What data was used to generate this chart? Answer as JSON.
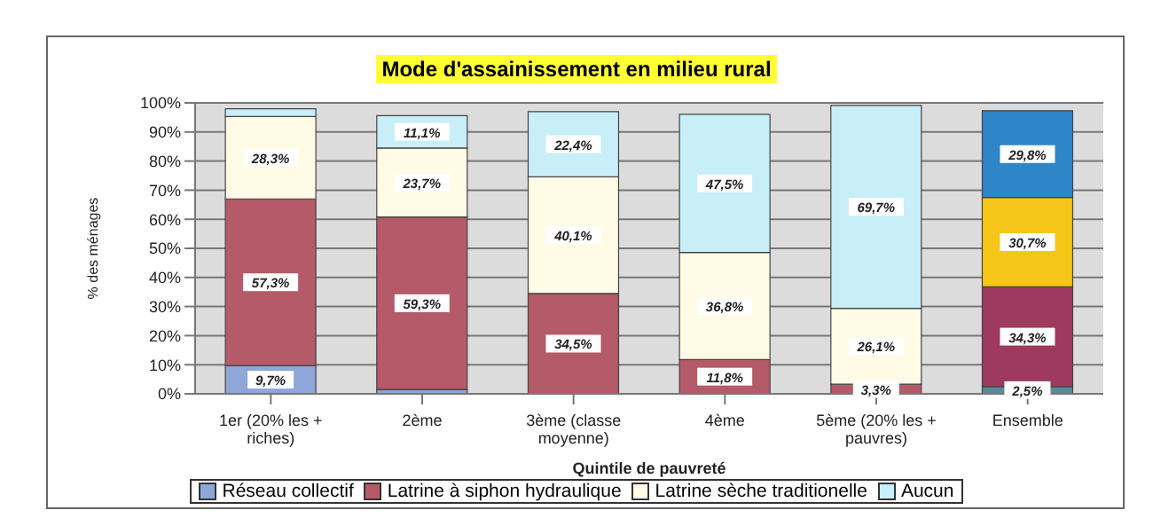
{
  "chart_data": {
    "type": "bar",
    "stacked": true,
    "title": "Mode d'assainissement en milieu rural",
    "xlabel": "Quintile de pauvreté",
    "ylabel": "% des ménages",
    "categories": [
      "1er (20% les + riches)",
      "2ème",
      "3ème (classe moyenne)",
      "4ème",
      "5ème (20% les + pauvres)",
      "Ensemble"
    ],
    "series": [
      {
        "name": "Réseau collectif",
        "color": "#8ea6d8",
        "colors": [
          "#8ea6d8",
          "#8ea6d8",
          "#8ea6d8",
          "#8ea6d8",
          "#8ea6d8",
          "#5a8a9a"
        ],
        "values": [
          9.7,
          1.5,
          null,
          null,
          null,
          2.5
        ],
        "value_labels": [
          "9,7%",
          null,
          null,
          null,
          null,
          "2,5%"
        ]
      },
      {
        "name": "Latrine à siphon hydraulique",
        "color": "#b55a68",
        "colors": [
          "#b55a68",
          "#b55a68",
          "#b55a68",
          "#b55a68",
          "#b55a68",
          "#9e3a5e"
        ],
        "values": [
          57.3,
          59.3,
          34.5,
          11.8,
          3.3,
          34.3
        ],
        "value_labels": [
          "57,3%",
          "59,3%",
          "34,5%",
          "11,8%",
          "3,3%",
          "34,3%"
        ]
      },
      {
        "name": "Latrine sèche traditionelle",
        "color": "#fffbe6",
        "colors": [
          "#fffbe6",
          "#fffbe6",
          "#fffbe6",
          "#fffbe6",
          "#fffbe6",
          "#f5c518"
        ],
        "values": [
          28.3,
          23.7,
          40.1,
          36.8,
          26.1,
          30.7
        ],
        "value_labels": [
          "28,3%",
          "23,7%",
          "40,1%",
          "36,8%",
          "26,1%",
          "30,7%"
        ]
      },
      {
        "name": "Aucun",
        "color": "#c8eef8",
        "colors": [
          "#c8eef8",
          "#c8eef8",
          "#c8eef8",
          "#c8eef8",
          "#c8eef8",
          "#2e86c8"
        ],
        "values": [
          2.7,
          11.1,
          22.4,
          47.5,
          69.7,
          29.8
        ],
        "value_labels": [
          null,
          "11,1%",
          "22,4%",
          "47,5%",
          "69,7%",
          "29,8%"
        ]
      }
    ],
    "ylim": [
      0,
      100
    ],
    "yticks": [
      {
        "value": 0,
        "label": "0%"
      },
      {
        "value": 10,
        "label": "10%"
      },
      {
        "value": 20,
        "label": "20%"
      },
      {
        "value": 30,
        "label": "30%"
      },
      {
        "value": 40,
        "label": "40%"
      },
      {
        "value": 50,
        "label": "50%"
      },
      {
        "value": 60,
        "label": "60%"
      },
      {
        "value": 70,
        "label": "70%"
      },
      {
        "value": 80,
        "label": "80%"
      },
      {
        "value": 90,
        "label": "90%"
      },
      {
        "value": 100,
        "label": "100%"
      }
    ],
    "grid": "y",
    "legend": "bottom"
  }
}
